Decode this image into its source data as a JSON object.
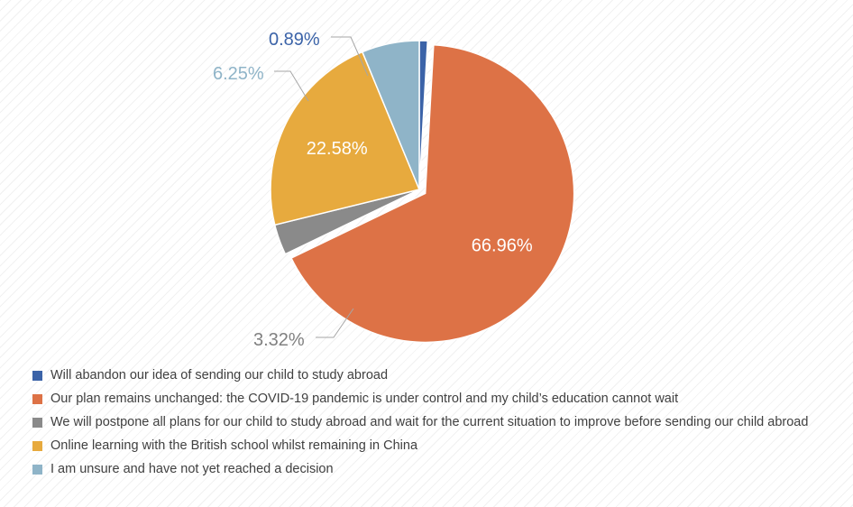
{
  "chart_data": {
    "type": "pie",
    "title": "",
    "series": [
      {
        "label": "Will abandon our idea of sending our child to study abroad",
        "value": 0.89,
        "display": "0.89%",
        "color": "#3b63a8"
      },
      {
        "label": "Our plan remains unchanged: the COVID-19 pandemic is under control and my child’s education cannot wait",
        "value": 66.96,
        "display": "66.96%",
        "color": "#dd7246"
      },
      {
        "label": "We will postpone all plans for our child to study abroad and wait for the current situation to improve before sending our child abroad",
        "value": 3.32,
        "display": "3.32%",
        "color": "#8a8a8a"
      },
      {
        "label": "Online learning with the British school whilst remaining in China",
        "value": 22.58,
        "display": "22.58%",
        "color": "#e7aa3e"
      },
      {
        "label": "I am unsure and have not yet reached a decision",
        "value": 6.25,
        "display": "6.25%",
        "color": "#8fb4c8"
      }
    ],
    "legend_position": "bottom-left",
    "exploded_slice": "Our plan remains unchanged: the COVID-19 pandemic is under control and my child’s education cannot wait"
  }
}
